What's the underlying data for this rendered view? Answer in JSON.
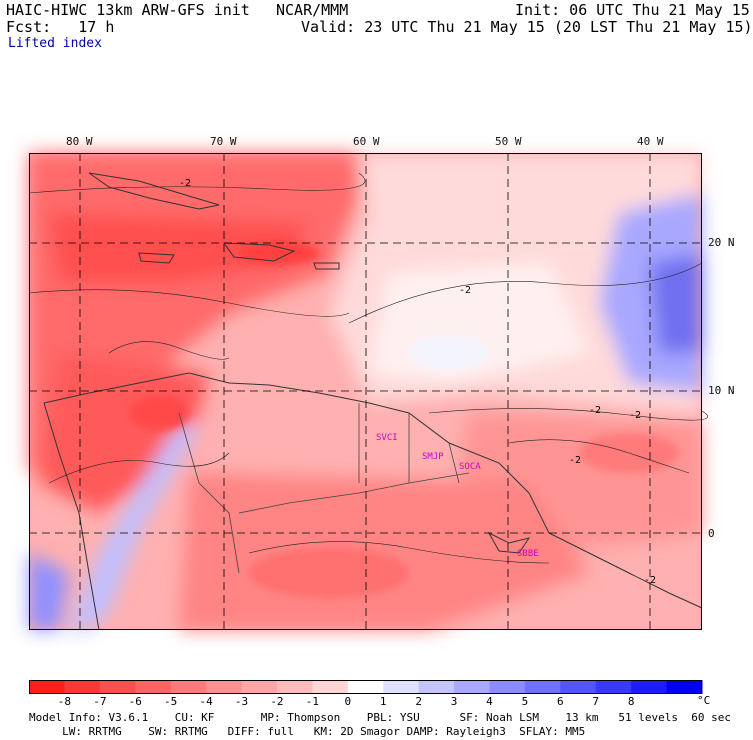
{
  "header": {
    "model": "HAIC-HIWC 13km ARW-GFS init",
    "org": "NCAR/MMM",
    "init": "Init: 06 UTC Thu 21 May 15",
    "fcst": "Fcst:   17 h",
    "valid": "Valid: 23 UTC Thu 21 May 15 (20 LST Thu 21 May 15)",
    "field": "Lifted index"
  },
  "map": {
    "lon_labels": [
      "80 W",
      "70 W",
      "60 W",
      "50 W",
      "40 W"
    ],
    "lat_labels": [
      "20 N",
      "10 N",
      "0"
    ],
    "stations": [
      "SVCI",
      "SMJP",
      "SOCA",
      "SBBE"
    ],
    "contour_labels": [
      "-2",
      "-2",
      "-2",
      "-2",
      "-2",
      "-2"
    ],
    "colors": {
      "station": "#cc00cc",
      "negative": "#f02020",
      "positive": "#2020f0"
    }
  },
  "colorbar": {
    "ticks": [
      "-8",
      "-7",
      "-6",
      "-5",
      "-4",
      "-3",
      "-2",
      "-1",
      "0",
      "1",
      "2",
      "3",
      "4",
      "5",
      "6",
      "7",
      "8"
    ],
    "unit": "°C",
    "colors": [
      "#ff1e1e",
      "#ff3636",
      "#ff4e4e",
      "#ff6464",
      "#ff7a7a",
      "#ff9090",
      "#ffa6a6",
      "#ffbcbc",
      "#ffd6d6",
      "#ffffff",
      "#e0e0ff",
      "#c4c4ff",
      "#a8a8ff",
      "#8c8cff",
      "#7070ff",
      "#5454ff",
      "#3838ff",
      "#1c1cff",
      "#0000f0"
    ]
  },
  "footer": {
    "line1": "Model Info: V3.6.1    CU: KF       MP: Thompson    PBL: YSU      SF: Noah LSM    13 km   51 levels  60 sec",
    "line2": "     LW: RRTMG    SW: RRTMG   DIFF: full   KM: 2D Smagor DAMP: Rayleigh3  SFLAY: MM5"
  }
}
